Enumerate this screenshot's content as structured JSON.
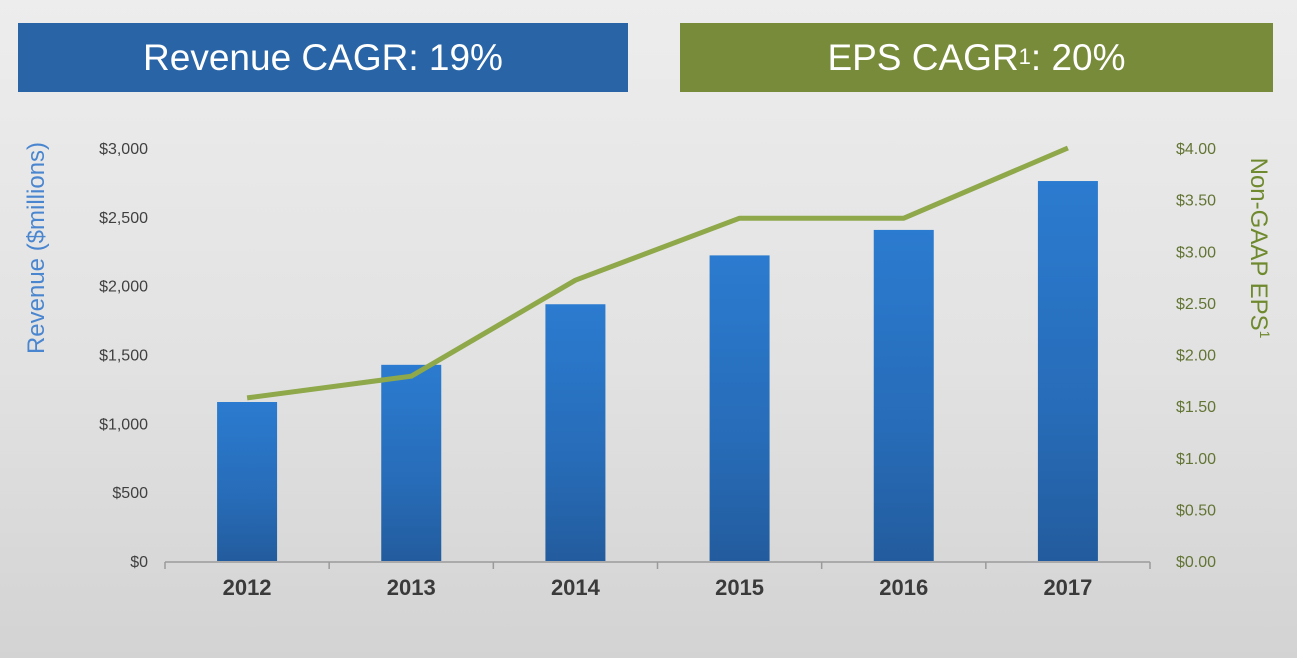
{
  "banners": {
    "revenue": {
      "label": "Revenue CAGR: 19%"
    },
    "eps": {
      "prefix": "EPS CAGR",
      "sup": "1",
      "suffix": ": 20%"
    }
  },
  "colors": {
    "bar": "#2a74c4",
    "line": "#8ea84a",
    "revenue_banner": "#2965a6",
    "eps_banner": "#778b3a",
    "left_axis_label": "#4a86cf",
    "right_axis_label": "#6f8a2e"
  },
  "chart_data": {
    "type": "bar",
    "categories": [
      "2012",
      "2013",
      "2014",
      "2015",
      "2016",
      "2017"
    ],
    "series": [
      {
        "type": "bar",
        "axis": "left",
        "values": [
          1155,
          1425,
          1865,
          2220,
          2405,
          2760
        ]
      },
      {
        "type": "line",
        "axis": "right",
        "values": [
          1.58,
          1.79,
          2.72,
          3.32,
          3.32,
          4.0
        ]
      }
    ],
    "ylabel": "Revenue ($millions)",
    "ylim": [
      0,
      3000
    ],
    "ytick_labels": [
      "$0",
      "$500",
      "$1,000",
      "$1,500",
      "$2,000",
      "$2,500",
      "$3,000"
    ],
    "y2label": "Non-GAAP EPS",
    "y2label_sup": "1",
    "y2lim": [
      0,
      4
    ],
    "y2tick_labels": [
      "$0.00",
      "$0.50",
      "$1.00",
      "$1.50",
      "$2.00",
      "$2.50",
      "$3.00",
      "$3.50",
      "$4.00"
    ],
    "grid": false,
    "legend": "none"
  }
}
